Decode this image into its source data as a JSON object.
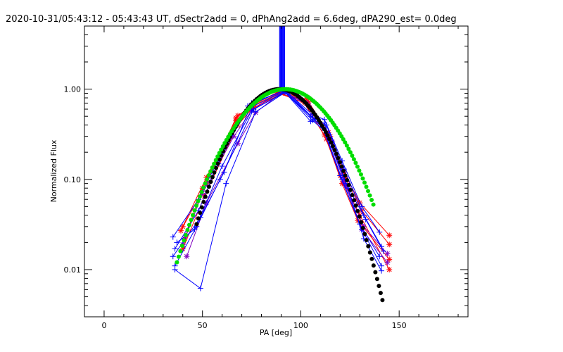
{
  "chart_data": {
    "type": "scatter",
    "title": "2020-10-31/05:43:12 - 05:43:43 UT, dSectr2add = 0, dPhAng2add = 6.6deg, dPA290_est=  0.0deg",
    "xlabel": "PA [deg]",
    "ylabel": "Normalized Flux",
    "xlim": [
      -10,
      185
    ],
    "ylim": [
      0.003,
      5
    ],
    "y_scale": "log",
    "grid": false,
    "x_ticks": [
      {
        "value": 0,
        "label": "0"
      },
      {
        "value": 50,
        "label": "50"
      },
      {
        "value": 100,
        "label": "100"
      },
      {
        "value": 150,
        "label": "150"
      }
    ],
    "y_ticks": [
      {
        "value": 0.01,
        "label": "0.01"
      },
      {
        "value": 0.1,
        "label": "0.10"
      },
      {
        "value": 1,
        "label": "1.00"
      }
    ],
    "vertical_band": {
      "x_center": 90.5,
      "x_width": 2.6,
      "y_from": 0.95,
      "y_to": 5,
      "color": "#0000ff"
    },
    "colors": {
      "red": "#ff0000",
      "blue": "#0000ff",
      "purple": "#8000c0",
      "black": "#000000",
      "green": "#00dd00"
    },
    "series": [
      {
        "color": "red",
        "marker": "asterisk",
        "x": [
          40,
          52,
          68,
          76,
          90,
          103,
          114,
          122,
          130,
          145
        ],
        "y": [
          0.03,
          0.105,
          0.51,
          0.66,
          0.93,
          0.77,
          0.33,
          0.12,
          0.055,
          0.024
        ]
      },
      {
        "color": "red",
        "marker": "asterisk",
        "x": [
          41,
          50,
          67,
          76,
          91,
          104,
          115,
          123,
          131,
          145
        ],
        "y": [
          0.022,
          0.08,
          0.45,
          0.62,
          0.91,
          0.72,
          0.3,
          0.1,
          0.045,
          0.019
        ]
      },
      {
        "color": "red",
        "marker": "asterisk",
        "x": [
          40,
          51,
          68,
          75,
          89,
          102,
          113,
          121,
          129,
          145
        ],
        "y": [
          0.017,
          0.065,
          0.4,
          0.6,
          0.9,
          0.7,
          0.28,
          0.09,
          0.035,
          0.013
        ]
      },
      {
        "color": "red",
        "marker": "asterisk",
        "x": [
          39,
          52,
          67,
          74,
          88,
          101,
          112,
          120,
          130,
          145
        ],
        "y": [
          0.027,
          0.09,
          0.48,
          0.64,
          0.92,
          0.74,
          0.31,
          0.11,
          0.04,
          0.01
        ]
      },
      {
        "color": "purple",
        "marker": "asterisk",
        "x": [
          40,
          50,
          66,
          75,
          90,
          103,
          114,
          122,
          132,
          144
        ],
        "y": [
          0.019,
          0.07,
          0.3,
          0.58,
          0.95,
          0.7,
          0.29,
          0.095,
          0.03,
          0.015
        ]
      },
      {
        "color": "purple",
        "marker": "asterisk",
        "x": [
          42,
          52,
          68,
          77,
          91,
          104,
          116,
          123,
          131,
          144
        ],
        "y": [
          0.014,
          0.055,
          0.25,
          0.55,
          0.94,
          0.66,
          0.26,
          0.085,
          0.028,
          0.012
        ]
      },
      {
        "color": "blue",
        "marker": "plus",
        "x": [
          35,
          48,
          60,
          75,
          92,
          106,
          112,
          121,
          131,
          140
        ],
        "y": [
          0.023,
          0.06,
          0.2,
          0.7,
          0.97,
          0.52,
          0.46,
          0.16,
          0.05,
          0.026
        ]
      },
      {
        "color": "blue",
        "marker": "plus",
        "x": [
          36,
          48,
          58,
          73,
          91,
          105,
          113,
          122,
          132,
          141
        ],
        "y": [
          0.017,
          0.045,
          0.15,
          0.65,
          0.96,
          0.5,
          0.4,
          0.13,
          0.04,
          0.018
        ]
      },
      {
        "color": "blue",
        "marker": "plus",
        "x": [
          35,
          49,
          61,
          74,
          92,
          106,
          111,
          120,
          130,
          140
        ],
        "y": [
          0.014,
          0.038,
          0.12,
          0.62,
          0.95,
          0.48,
          0.38,
          0.11,
          0.032,
          0.014
        ]
      },
      {
        "color": "blue",
        "marker": "plus",
        "x": [
          36,
          47,
          59,
          76,
          93,
          107,
          112,
          121,
          131,
          141
        ],
        "y": [
          0.011,
          0.03,
          0.1,
          0.6,
          0.94,
          0.46,
          0.35,
          0.1,
          0.028,
          0.011
        ]
      },
      {
        "color": "blue",
        "marker": "plus",
        "x": [
          37,
          46,
          60,
          75,
          92,
          106,
          113,
          123,
          133,
          142
        ],
        "y": [
          0.02,
          0.028,
          0.14,
          0.58,
          0.93,
          0.45,
          0.33,
          0.09,
          0.036,
          0.016
        ]
      },
      {
        "color": "blue",
        "marker": "plus",
        "x": [
          36,
          49,
          62,
          77,
          92,
          105,
          112,
          124,
          132,
          141
        ],
        "y": [
          0.01,
          0.0062,
          0.09,
          0.56,
          0.92,
          0.44,
          0.42,
          0.08,
          0.022,
          0.0097
        ]
      }
    ],
    "dotted_curves": [
      {
        "color": "black",
        "center": 89.0,
        "sigma": 16.0,
        "x_from": 47,
        "x_to": 142,
        "marker": "dot"
      },
      {
        "color": "green",
        "center": 92.0,
        "sigma": 18.5,
        "x_from": 37,
        "x_to": 137,
        "marker": "dot"
      }
    ]
  }
}
